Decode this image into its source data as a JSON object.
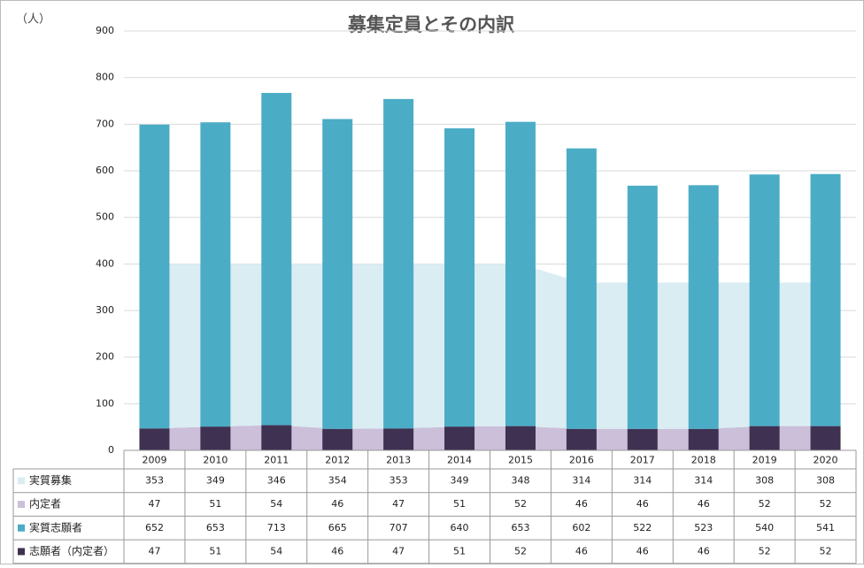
{
  "chart_data": {
    "type": "bar",
    "title": "募集定員とその内訳",
    "unit_label": "（人）",
    "categories": [
      "2009",
      "2010",
      "2011",
      "2012",
      "2013",
      "2014",
      "2015",
      "2016",
      "2017",
      "2018",
      "2019",
      "2020"
    ],
    "series": [
      {
        "name": "実質募集",
        "kind": "area",
        "color": "#daedf3",
        "values": [
          353,
          349,
          346,
          354,
          353,
          349,
          348,
          314,
          314,
          314,
          308,
          308
        ]
      },
      {
        "name": "内定者",
        "kind": "area",
        "color": "#cbbfd9",
        "values": [
          47,
          51,
          54,
          46,
          47,
          51,
          52,
          46,
          46,
          46,
          52,
          52
        ]
      },
      {
        "name": "実質志願者",
        "kind": "bar",
        "color": "#4bacc6",
        "values": [
          652,
          653,
          713,
          665,
          707,
          640,
          653,
          602,
          522,
          523,
          540,
          541
        ]
      },
      {
        "name": "志願者（内定者）",
        "kind": "bar",
        "color": "#3f3151",
        "values": [
          47,
          51,
          54,
          46,
          47,
          51,
          52,
          46,
          46,
          46,
          52,
          52
        ]
      }
    ],
    "ylim": [
      0,
      900
    ],
    "yticks": [
      0,
      100,
      200,
      300,
      400,
      500,
      600,
      700,
      800,
      900
    ],
    "grid": true
  }
}
